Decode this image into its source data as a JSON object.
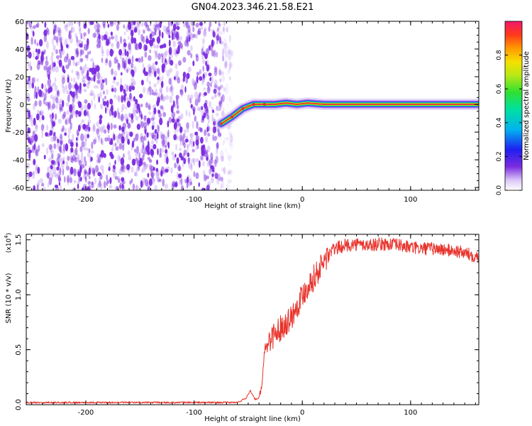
{
  "title": "GN04.2023.346.21.58.E21",
  "colors": {
    "snr_line": "#e8322b",
    "speckle": "#7b2be0",
    "track_core": "#e8283c",
    "axis": "#000000"
  },
  "chart_data": [
    {
      "type": "heatmap",
      "title": "",
      "xlabel": "Height of straight line (km)",
      "ylabel": "Frequency (Hz)",
      "xlim": [
        -255,
        163
      ],
      "ylim": [
        -62,
        60
      ],
      "xticks": [
        -200,
        -100,
        0,
        100
      ],
      "xtick_labels": [
        "-200",
        "-100",
        "0",
        "100"
      ],
      "yticks": [
        60,
        40,
        20,
        0,
        -20,
        -40,
        -60
      ],
      "ytick_labels": [
        "60",
        "40",
        "20",
        "0",
        "-20",
        "-40",
        "-60"
      ],
      "noise_region_x": [
        -255,
        -70
      ],
      "track": {
        "description_points_x": [
          -75,
          -65,
          -55,
          -45,
          -35,
          -25,
          -15,
          -5,
          5,
          20,
          60,
          100,
          163
        ],
        "description_points_y": [
          -14,
          -9,
          -3,
          0,
          0,
          0,
          1,
          0,
          1,
          0,
          0,
          0,
          0
        ]
      },
      "colorbar": {
        "label": "Normalized spectral amplitude",
        "ticks": [
          0.0,
          0.2,
          0.4,
          0.6,
          0.8
        ],
        "tick_labels": [
          "0.0",
          "0.2",
          "0.4",
          "0.6",
          "0.8"
        ],
        "range": [
          0,
          1
        ],
        "colormap": "rainbow"
      },
      "grid": false
    },
    {
      "type": "line",
      "title": "",
      "xlabel": "Height of straight line (km)",
      "ylabel": "SNR (10 * v/v)",
      "yscale_label": "(x10",
      "yscale_exp": "4",
      "yscale_close": ")",
      "xlim": [
        -255,
        163
      ],
      "ylim": [
        0,
        1.55
      ],
      "xticks": [
        -200,
        -100,
        0,
        100
      ],
      "xtick_labels": [
        "-200",
        "-100",
        "0",
        "100"
      ],
      "yticks": [
        0.0,
        0.5,
        1.0,
        1.5
      ],
      "ytick_labels": [
        "0.0",
        "0.5",
        "1.0",
        "1.5"
      ],
      "series": [
        {
          "x": [
            -255,
            -200,
            -150,
            -100,
            -60,
            -52,
            -48,
            -44,
            -40,
            -37,
            -35,
            -30,
            -25,
            -20,
            -15,
            -10,
            -5,
            0,
            5,
            10,
            15,
            20,
            25,
            30,
            40,
            50,
            60,
            70,
            80,
            90,
            100,
            110,
            120,
            130,
            140,
            150,
            160,
            163
          ],
          "values": [
            0.02,
            0.02,
            0.02,
            0.02,
            0.02,
            0.06,
            0.13,
            0.05,
            0.06,
            0.18,
            0.5,
            0.6,
            0.65,
            0.7,
            0.75,
            0.8,
            0.9,
            1.0,
            1.08,
            1.15,
            1.22,
            1.3,
            1.38,
            1.42,
            1.45,
            1.46,
            1.45,
            1.46,
            1.46,
            1.45,
            1.43,
            1.42,
            1.42,
            1.41,
            1.4,
            1.38,
            1.35,
            1.35
          ]
        }
      ],
      "grid": false
    }
  ]
}
